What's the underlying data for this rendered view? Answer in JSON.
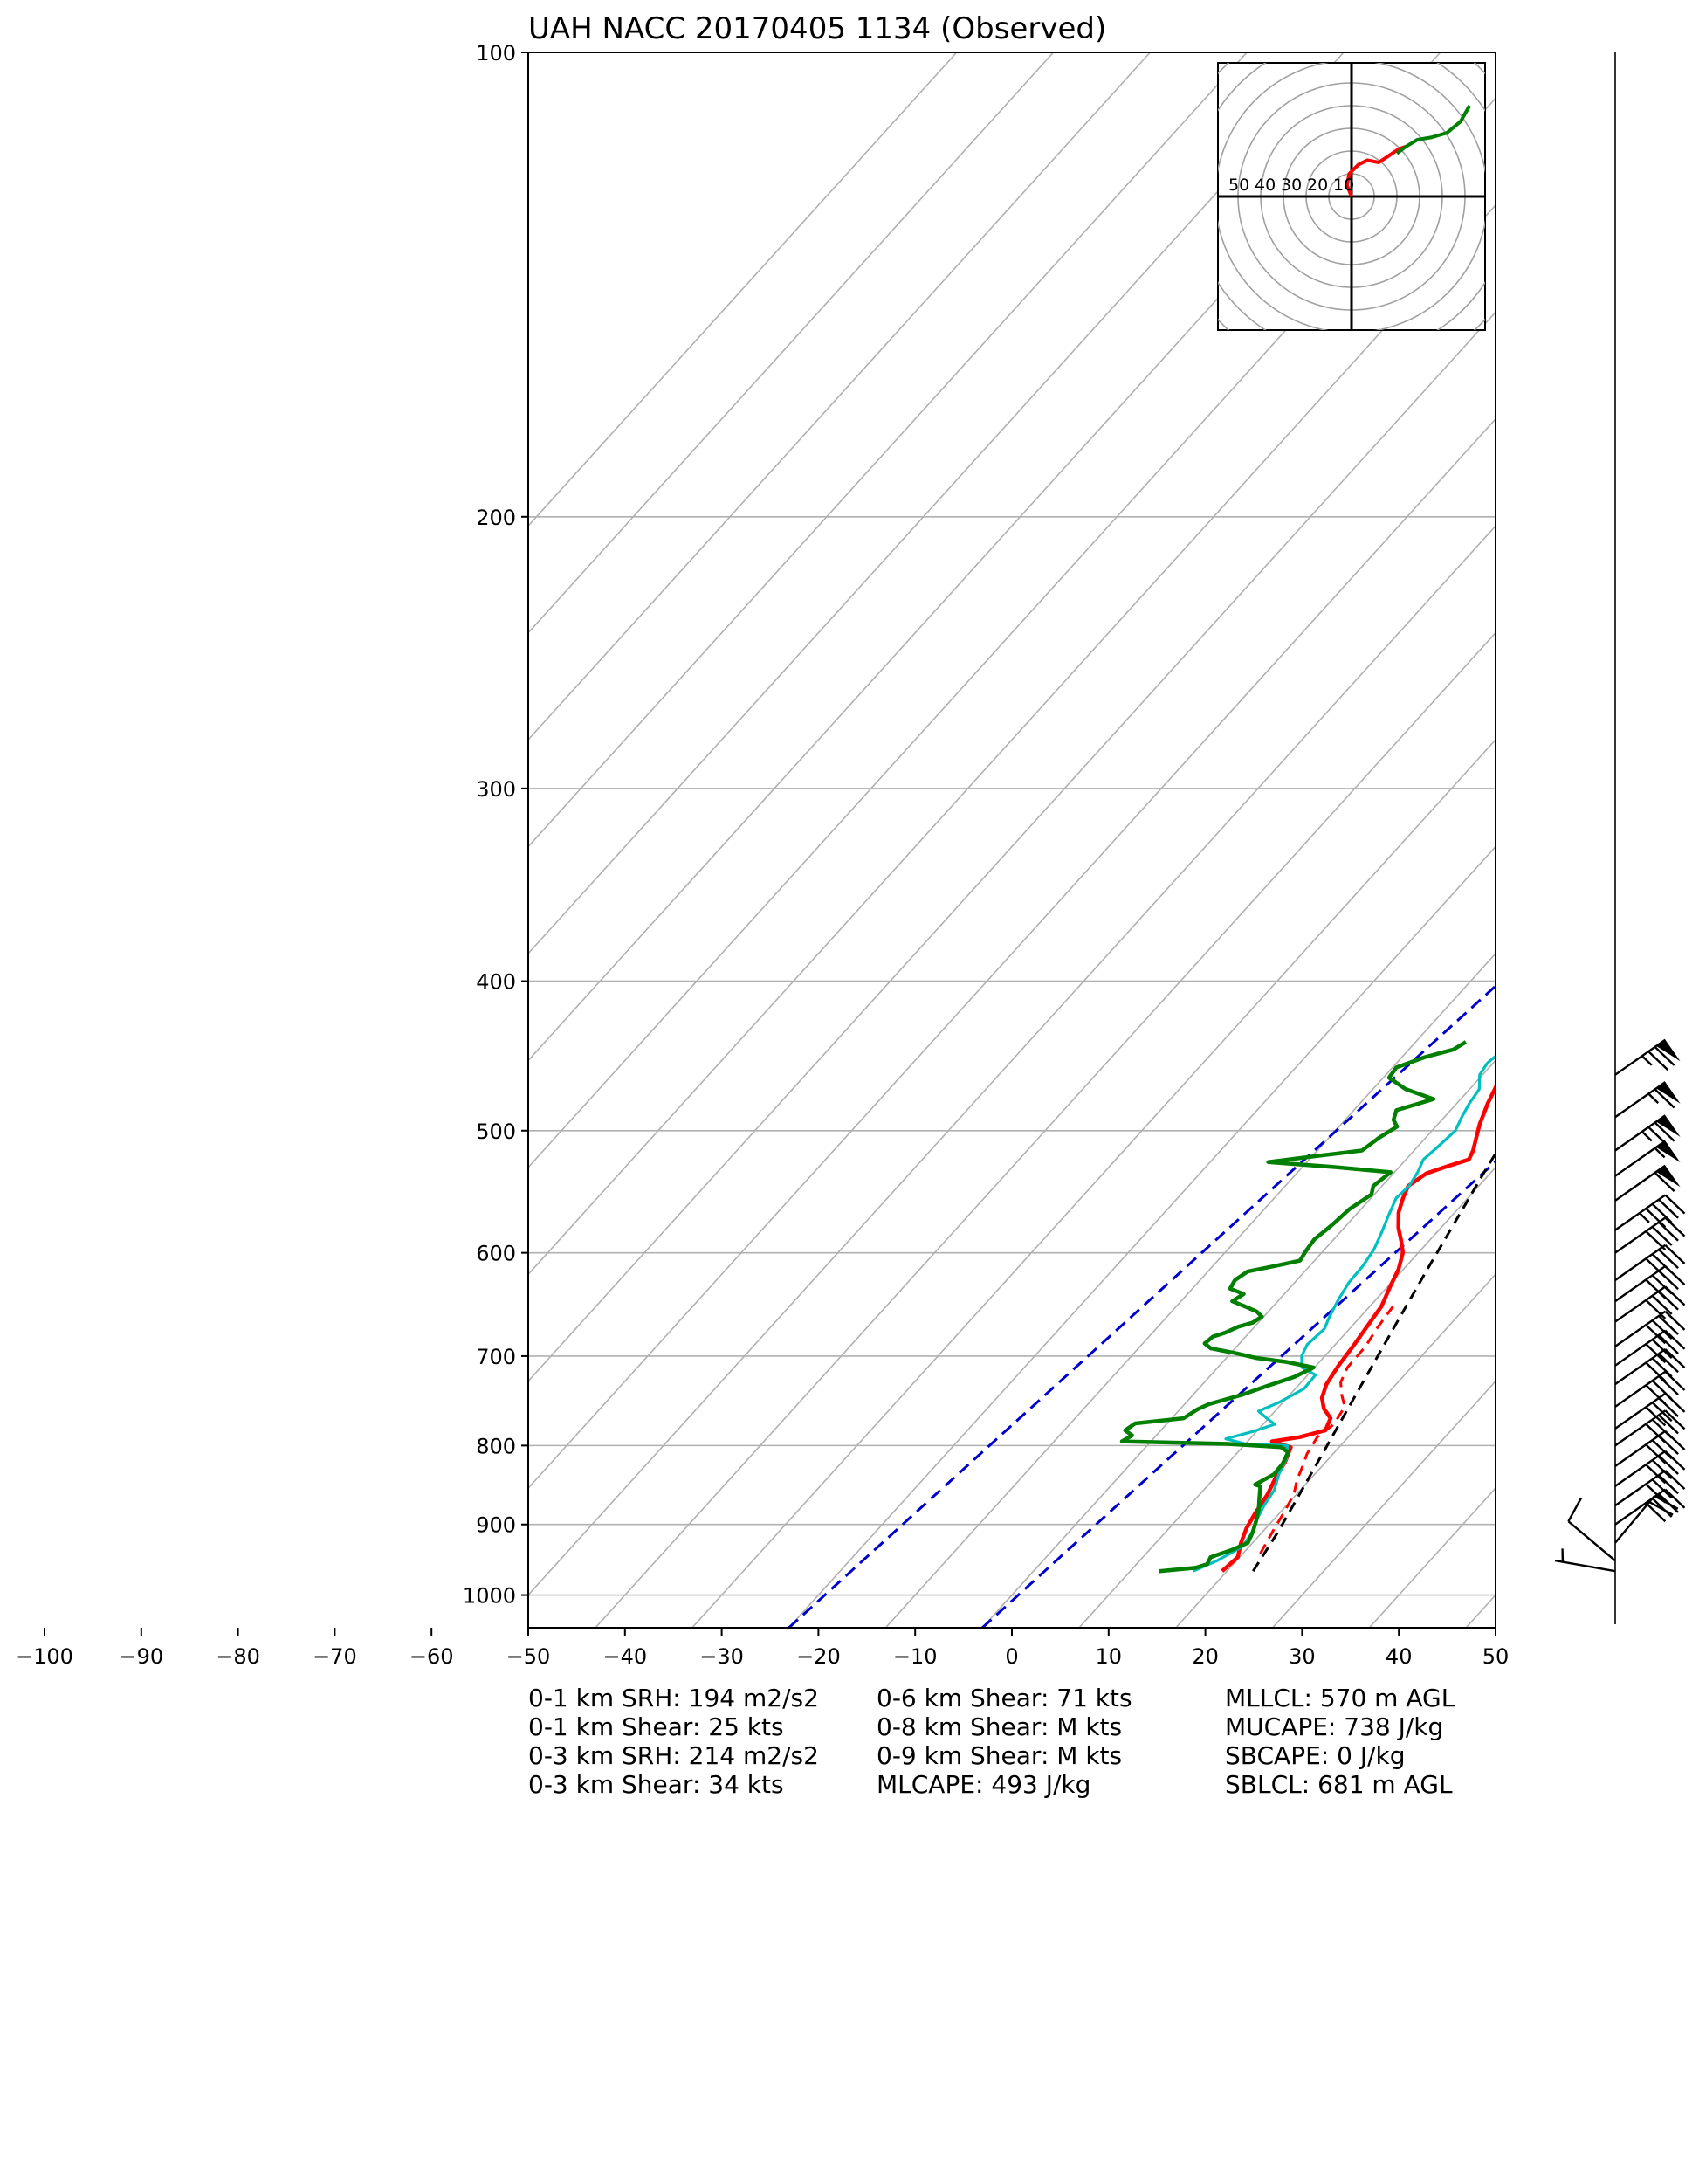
{
  "chart_data": {
    "type": "line",
    "subtype": "skew-T log-P sounding",
    "title": "UAH NACC 20170405 1134   (Observed)",
    "xlabel": "",
    "ylabel": "",
    "y_scale": "log",
    "y_inverted": true,
    "grid": true,
    "xlim": [
      -50,
      50
    ],
    "ylim": [
      1050,
      100
    ],
    "x_ticks": [
      -100,
      -90,
      -80,
      -70,
      -60,
      -50,
      -40,
      -30,
      -20,
      -10,
      0,
      10,
      20,
      30,
      40,
      50
    ],
    "y_ticks": [
      100,
      200,
      300,
      400,
      500,
      600,
      700,
      800,
      900,
      1000
    ],
    "series": [
      {
        "color": "#ff0000",
        "style": "solid",
        "points": [
          [
            19.5,
            965
          ],
          [
            19.8,
            945
          ],
          [
            18.8,
            925
          ],
          [
            18.0,
            905
          ],
          [
            17.5,
            885
          ],
          [
            17.0,
            860
          ],
          [
            16.3,
            840
          ],
          [
            15.8,
            820
          ],
          [
            15.0,
            802
          ],
          [
            12.5,
            795
          ],
          [
            15.0,
            790
          ],
          [
            17.0,
            782
          ],
          [
            16.4,
            768
          ],
          [
            14.8,
            757
          ],
          [
            13.6,
            745
          ],
          [
            12.8,
            730
          ],
          [
            12.3,
            710
          ],
          [
            12.0,
            690
          ],
          [
            11.6,
            670
          ],
          [
            11.2,
            650
          ],
          [
            10.2,
            630
          ],
          [
            9.5,
            615
          ],
          [
            8.4,
            600
          ],
          [
            7.2,
            590
          ],
          [
            5.6,
            578
          ],
          [
            4.2,
            565
          ],
          [
            3.3,
            553
          ],
          [
            2.7,
            543
          ],
          [
            3.4,
            533
          ],
          [
            4.7,
            528
          ],
          [
            6.5,
            522
          ],
          [
            6.1,
            515
          ],
          [
            5.2,
            505
          ],
          [
            4.3,
            495
          ],
          [
            3.2,
            480
          ],
          [
            2.3,
            465
          ],
          [
            1.6,
            450
          ],
          [
            1.2,
            440
          ]
        ]
      },
      {
        "color": "#00bfbf",
        "style": "solid",
        "points": [
          [
            16.5,
            965
          ],
          [
            18.0,
            950
          ],
          [
            19.3,
            930
          ],
          [
            19.0,
            912
          ],
          [
            18.3,
            895
          ],
          [
            17.7,
            875
          ],
          [
            17.3,
            855
          ],
          [
            16.3,
            835
          ],
          [
            15.6,
            815
          ],
          [
            14.5,
            800
          ],
          [
            10.0,
            798
          ],
          [
            7.5,
            792
          ],
          [
            9.7,
            783
          ],
          [
            11.2,
            775
          ],
          [
            9.8,
            768
          ],
          [
            8.3,
            760
          ],
          [
            9.6,
            750
          ],
          [
            10.9,
            735
          ],
          [
            10.8,
            720
          ],
          [
            8.7,
            712
          ],
          [
            7.6,
            700
          ],
          [
            7.1,
            688
          ],
          [
            7.4,
            672
          ],
          [
            6.8,
            660
          ],
          [
            6.1,
            643
          ],
          [
            5.6,
            627
          ],
          [
            5.5,
            612
          ],
          [
            5.1,
            597
          ],
          [
            4.3,
            582
          ],
          [
            3.4,
            567
          ],
          [
            2.6,
            553
          ],
          [
            2.8,
            543
          ],
          [
            2.4,
            532
          ],
          [
            1.8,
            522
          ],
          [
            2.1,
            512
          ],
          [
            2.4,
            500
          ],
          [
            1.8,
            490
          ],
          [
            1.3,
            480
          ],
          [
            1.0,
            470
          ],
          [
            -0.3,
            460
          ],
          [
            -0.6,
            452
          ],
          [
            -0.3,
            445
          ],
          [
            0.2,
            440
          ]
        ]
      },
      {
        "color": "#007f00",
        "style": "solid",
        "points": [
          [
            13.0,
            965
          ],
          [
            16.5,
            960
          ],
          [
            17.3,
            955
          ],
          [
            17.0,
            945
          ],
          [
            18.5,
            935
          ],
          [
            19.5,
            925
          ],
          [
            19.0,
            910
          ],
          [
            18.3,
            895
          ],
          [
            17.5,
            880
          ],
          [
            16.5,
            865
          ],
          [
            15.5,
            850
          ],
          [
            14.8,
            848
          ],
          [
            15.8,
            835
          ],
          [
            15.7,
            822
          ],
          [
            15.2,
            808
          ],
          [
            14.0,
            802
          ],
          [
            8.0,
            798
          ],
          [
            -3.0,
            795
          ],
          [
            -2.5,
            788
          ],
          [
            -3.7,
            782
          ],
          [
            -3.3,
            774
          ],
          [
            1.2,
            768
          ],
          [
            1.8,
            758
          ],
          [
            2.5,
            752
          ],
          [
            5.0,
            742
          ],
          [
            6.8,
            732
          ],
          [
            8.8,
            722
          ],
          [
            9.9,
            712
          ],
          [
            6.5,
            706
          ],
          [
            3.1,
            702
          ],
          [
            0.5,
            697
          ],
          [
            -2.5,
            692
          ],
          [
            -3.6,
            687
          ],
          [
            -3.4,
            680
          ],
          [
            -2.5,
            676
          ],
          [
            -1.7,
            670
          ],
          [
            -0.6,
            666
          ],
          [
            -0.2,
            660
          ],
          [
            -1.2,
            655
          ],
          [
            -2.9,
            650
          ],
          [
            -4.7,
            645
          ],
          [
            -4.2,
            638
          ],
          [
            -6.1,
            633
          ],
          [
            -6.4,
            625
          ],
          [
            -5.9,
            617
          ],
          [
            -3.6,
            612
          ],
          [
            -1.5,
            607
          ],
          [
            -1.8,
            598
          ],
          [
            -2.0,
            588
          ],
          [
            -1.5,
            575
          ],
          [
            -1.2,
            562
          ],
          [
            -0.3,
            550
          ],
          [
            -0.9,
            543
          ],
          [
            -0.4,
            532
          ],
          [
            -6.5,
            528
          ],
          [
            -14.0,
            524
          ],
          [
            -9.3,
            519
          ],
          [
            -5.4,
            515
          ],
          [
            -5.1,
            510
          ],
          [
            -4.8,
            505
          ],
          [
            -4.0,
            497
          ],
          [
            -5.0,
            492
          ],
          [
            -5.6,
            485
          ],
          [
            -2.8,
            477
          ],
          [
            -6.6,
            470
          ],
          [
            -9.4,
            462
          ],
          [
            -9.6,
            455
          ],
          [
            -7.6,
            448
          ],
          [
            -5.4,
            443
          ],
          [
            -4.8,
            438
          ]
        ]
      },
      {
        "color": "#ff0000",
        "style": "dashed",
        "points": [
          [
            21.8,
            940
          ],
          [
            20.9,
            905
          ],
          [
            20.3,
            880
          ],
          [
            19.7,
            860
          ],
          [
            18.7,
            842
          ],
          [
            18.0,
            825
          ],
          [
            17.3,
            810
          ],
          [
            16.8,
            790
          ],
          [
            17.3,
            775
          ],
          [
            16.8,
            755
          ],
          [
            15.4,
            742
          ],
          [
            14.1,
            728
          ],
          [
            13.4,
            712
          ],
          [
            13.3,
            690
          ],
          [
            12.8,
            672
          ],
          [
            12.4,
            650
          ]
        ]
      },
      {
        "color": "#000000",
        "style": "dashed",
        "points": [
          [
            22.7,
            965
          ],
          [
            21.6,
            910
          ],
          [
            20.3,
            860
          ],
          [
            18.9,
            810
          ],
          [
            17.4,
            760
          ],
          [
            15.8,
            710
          ],
          [
            14.1,
            660
          ],
          [
            12.3,
            610
          ],
          [
            10.8,
            570
          ],
          [
            9.2,
            530
          ],
          [
            7.6,
            490
          ],
          [
            6.0,
            450
          ],
          [
            6.2,
            440
          ]
        ]
      }
    ],
    "adiabats": [
      -20,
      0
    ],
    "hodograph": {
      "ring_labels": [
        "50",
        "40",
        "30",
        "20",
        "10"
      ],
      "series": [
        {
          "color": "#ff0000",
          "points": [
            [
              0,
              0
            ],
            [
              -2,
              5
            ],
            [
              -1,
              10
            ],
            [
              3,
              14
            ],
            [
              7,
              16
            ],
            [
              12,
              15
            ],
            [
              15,
              17
            ],
            [
              18,
              19
            ],
            [
              21,
              21
            ],
            [
              24,
              22
            ]
          ]
        },
        {
          "color": "#007f00",
          "points": [
            [
              20,
              19
            ],
            [
              24,
              22
            ],
            [
              29,
              25
            ],
            [
              35,
              26
            ],
            [
              42,
              28
            ],
            [
              48,
              33
            ],
            [
              52,
              40
            ]
          ]
        }
      ]
    },
    "wind_barbs": [
      {
        "p": 965,
        "dir": 100,
        "speed": 5
      },
      {
        "p": 950,
        "dir": 130,
        "speed": 8
      },
      {
        "p": 925,
        "dir": 220,
        "speed": 22
      },
      {
        "p": 900,
        "dir": 235,
        "speed": 40
      },
      {
        "p": 875,
        "dir": 235,
        "speed": 40
      },
      {
        "p": 850,
        "dir": 235,
        "speed": 40
      },
      {
        "p": 825,
        "dir": 235,
        "speed": 40
      },
      {
        "p": 800,
        "dir": 235,
        "speed": 40
      },
      {
        "p": 780,
        "dir": 235,
        "speed": 40
      },
      {
        "p": 755,
        "dir": 235,
        "speed": 40
      },
      {
        "p": 730,
        "dir": 235,
        "speed": 40
      },
      {
        "p": 710,
        "dir": 235,
        "speed": 40
      },
      {
        "p": 690,
        "dir": 235,
        "speed": 40
      },
      {
        "p": 665,
        "dir": 235,
        "speed": 40
      },
      {
        "p": 645,
        "dir": 235,
        "speed": 40
      },
      {
        "p": 625,
        "dir": 235,
        "speed": 40
      },
      {
        "p": 600,
        "dir": 235,
        "speed": 40
      },
      {
        "p": 580,
        "dir": 235,
        "speed": 45
      },
      {
        "p": 555,
        "dir": 235,
        "speed": 60
      },
      {
        "p": 535,
        "dir": 235,
        "speed": 55
      },
      {
        "p": 515,
        "dir": 235,
        "speed": 75
      },
      {
        "p": 490,
        "dir": 235,
        "speed": 65
      },
      {
        "p": 460,
        "dir": 235,
        "speed": 75
      }
    ]
  },
  "stats": {
    "col1": [
      "0-1 km SRH: 194 m2/s2",
      "0-1 km Shear: 25 kts",
      "0-3 km SRH: 214 m2/s2",
      "0-3 km Shear: 34 kts"
    ],
    "col2": [
      "0-6 km Shear: 71 kts",
      "0-8 km Shear: M kts",
      "0-9 km Shear: M kts",
      "MLCAPE: 493 J/kg"
    ],
    "col3": [
      "MLLCL: 570 m AGL",
      "MUCAPE: 738 J/kg",
      "SBCAPE: 0 J/kg",
      "SBLCL: 681 m AGL"
    ]
  }
}
